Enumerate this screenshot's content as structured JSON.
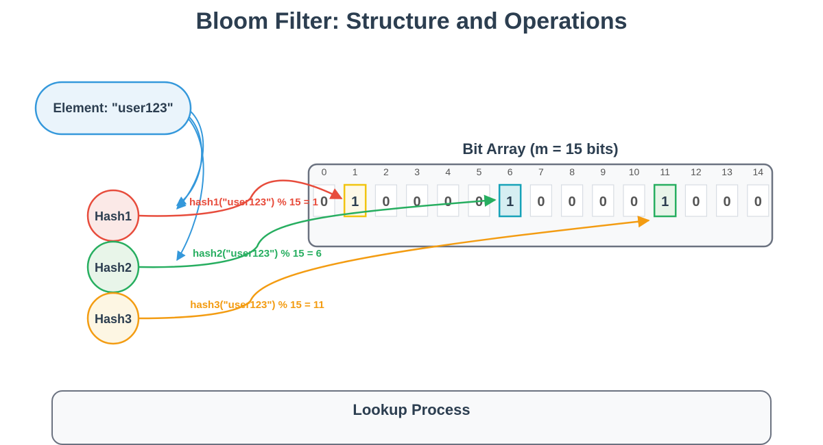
{
  "title": "Bloom Filter: Structure and Operations",
  "element": {
    "label": "Element: \"user123\""
  },
  "bit_array": {
    "title": "Bit Array (m = 15 bits)",
    "indices": [
      "0",
      "1",
      "2",
      "3",
      "4",
      "5",
      "6",
      "7",
      "8",
      "9",
      "10",
      "11",
      "12",
      "13",
      "14"
    ],
    "bits": [
      "0",
      "1",
      "0",
      "0",
      "0",
      "0",
      "1",
      "0",
      "0",
      "0",
      "0",
      "1",
      "0",
      "0",
      "0"
    ]
  },
  "hashes": [
    {
      "label": "Hash1",
      "formula": "hash1(\"user123\") % 15 = 1",
      "target": 1,
      "color": "#e74c3c",
      "fill": "#fbe9e7"
    },
    {
      "label": "Hash2",
      "formula": "hash2(\"user123\") % 15 = 6",
      "target": 6,
      "color": "#27ae60",
      "fill": "#e8f5e9"
    },
    {
      "label": "Hash3",
      "formula": "hash3(\"user123\") % 15 = 11",
      "target": 11,
      "color": "#f39c12",
      "fill": "#fdf6e3"
    }
  ],
  "highlight_styles": [
    {
      "bit": 1,
      "stroke": "#f1c40f",
      "fill": "#fef9e7"
    },
    {
      "bit": 6,
      "stroke": "#17a2b8",
      "fill": "#d6eef2"
    },
    {
      "bit": 11,
      "stroke": "#27ae60",
      "fill": "#e8f5e9"
    }
  ],
  "colors": {
    "element_stroke": "#3498db",
    "element_fill": "#eaf4fb",
    "text": "#2c3e50",
    "bit_text": "#555555"
  },
  "lookup": {
    "title": "Lookup Process"
  }
}
